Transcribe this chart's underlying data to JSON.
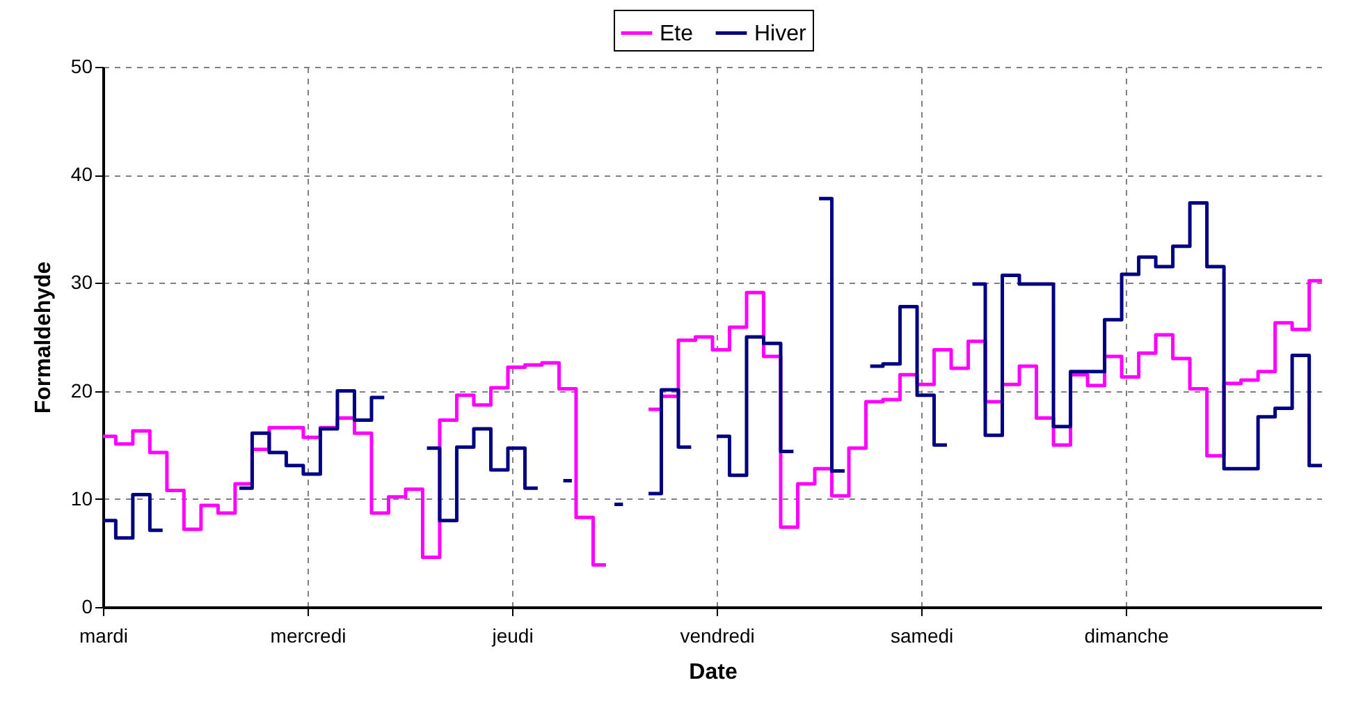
{
  "chart_data": {
    "type": "step",
    "xlabel": "Date",
    "ylabel": "Formaldehyde",
    "legend": "top",
    "grid": true,
    "categories": [
      "mardi",
      null,
      null,
      null,
      null,
      null,
      null,
      null,
      null,
      null,
      null,
      null,
      null,
      null,
      null,
      null,
      null,
      null,
      null,
      null,
      null,
      null,
      null,
      null,
      "mercredi",
      null,
      null,
      null,
      null,
      null,
      null,
      null,
      null,
      null,
      null,
      null,
      null,
      null,
      null,
      null,
      null,
      null,
      null,
      null,
      null,
      null,
      null,
      null,
      "jeudi",
      null,
      null,
      null,
      null,
      null,
      null,
      null,
      null,
      null,
      null,
      null,
      null,
      null,
      null,
      null,
      null,
      null,
      null,
      null,
      null,
      null,
      null,
      null,
      "vendredi",
      null,
      null,
      null,
      null,
      null,
      null,
      null,
      null,
      null,
      null,
      null,
      null,
      null,
      null,
      null,
      null,
      null,
      null,
      null,
      null,
      null,
      null,
      null,
      "samedi",
      null,
      null,
      null,
      null,
      null,
      null,
      null,
      null,
      null,
      null,
      null,
      null,
      null,
      null,
      null,
      null,
      null,
      null,
      null,
      null,
      null,
      null,
      null,
      "dimanche",
      null,
      null,
      null,
      null,
      null,
      null,
      null,
      null,
      null,
      null,
      null,
      null,
      null,
      null,
      null,
      null,
      null,
      null,
      null,
      null,
      null,
      null,
      null
    ],
    "ylim": [
      0,
      50
    ],
    "yticks": [
      0,
      10,
      20,
      30,
      40,
      50
    ],
    "series": [
      {
        "name": "Ete",
        "color": "#ff00ff",
        "values": [
          15.8,
          15.8,
          15.1,
          15.1,
          16.3,
          16.3,
          14.3,
          14.3,
          10.8,
          10.8,
          7.2,
          7.2,
          9.4,
          9.4,
          8.7,
          8.7,
          11.4,
          11.4,
          14.6,
          14.6,
          16.6,
          16.6,
          16.6,
          16.6,
          15.7,
          15.7,
          16.6,
          16.6,
          17.5,
          17.5,
          16.1,
          16.1,
          8.7,
          8.7,
          10.2,
          10.2,
          10.9,
          10.9,
          4.6,
          4.6,
          17.3,
          17.3,
          19.6,
          19.6,
          18.7,
          18.7,
          20.3,
          20.3,
          22.2,
          22.2,
          22.4,
          22.4,
          22.6,
          22.6,
          20.2,
          20.2,
          8.3,
          8.3,
          3.9,
          3.9,
          null,
          null,
          null,
          null,
          18.3,
          18.3,
          19.5,
          19.5,
          24.7,
          24.7,
          25.0,
          25.0,
          23.8,
          23.8,
          25.9,
          25.9,
          29.1,
          29.1,
          23.2,
          23.2,
          7.4,
          7.4,
          11.4,
          11.4,
          12.8,
          12.8,
          10.3,
          10.3,
          14.7,
          14.7,
          19.0,
          19.0,
          19.2,
          19.2,
          21.5,
          21.5,
          20.6,
          20.6,
          23.8,
          23.8,
          22.1,
          22.1,
          24.6,
          24.6,
          19.0,
          19.0,
          20.6,
          20.6,
          22.3,
          22.3,
          17.5,
          17.5,
          15.0,
          15.0,
          21.5,
          21.5,
          20.5,
          20.5,
          23.2,
          23.2,
          21.3,
          21.3,
          23.5,
          23.5,
          25.2,
          25.2,
          23.0,
          23.0,
          20.2,
          20.2,
          14.0,
          14.0,
          20.7,
          20.7,
          21.0,
          21.0,
          21.8,
          21.8,
          26.3,
          26.3,
          25.7,
          25.7,
          30.2,
          30.2
        ]
      },
      {
        "name": "Hiver",
        "color": "#000080",
        "values": [
          8.0,
          8.0,
          6.4,
          6.4,
          10.4,
          10.4,
          7.1,
          7.1,
          null,
          null,
          null,
          null,
          null,
          null,
          null,
          null,
          11.0,
          11.0,
          16.1,
          16.1,
          14.3,
          14.3,
          13.1,
          13.1,
          12.3,
          12.3,
          16.5,
          16.5,
          20.0,
          20.0,
          17.3,
          17.3,
          19.4,
          19.4,
          null,
          null,
          null,
          null,
          14.7,
          14.7,
          8.0,
          8.0,
          14.8,
          14.8,
          16.5,
          16.5,
          12.7,
          12.7,
          14.7,
          14.7,
          11.0,
          11.0,
          null,
          null,
          11.7,
          11.7,
          null,
          null,
          null,
          null,
          9.5,
          9.5,
          null,
          null,
          10.5,
          10.5,
          20.1,
          20.1,
          14.8,
          14.8,
          null,
          null,
          15.8,
          15.8,
          12.2,
          12.2,
          25.0,
          25.0,
          24.4,
          24.4,
          14.4,
          14.4,
          null,
          null,
          37.8,
          37.8,
          12.6,
          12.6,
          null,
          null,
          22.3,
          22.3,
          22.5,
          22.5,
          27.8,
          27.8,
          19.6,
          19.6,
          15.0,
          15.0,
          null,
          null,
          29.9,
          29.9,
          15.9,
          15.9,
          30.7,
          30.7,
          29.9,
          29.9,
          29.9,
          29.9,
          16.7,
          16.7,
          21.8,
          21.8,
          21.8,
          21.8,
          26.6,
          26.6,
          30.8,
          30.8,
          32.4,
          32.4,
          31.5,
          31.5,
          33.4,
          33.4,
          37.4,
          37.4,
          31.5,
          31.5,
          12.8,
          12.8,
          12.8,
          12.8,
          17.6,
          17.6,
          18.4,
          18.4,
          23.3,
          23.3,
          13.1,
          13.1
        ]
      }
    ]
  }
}
